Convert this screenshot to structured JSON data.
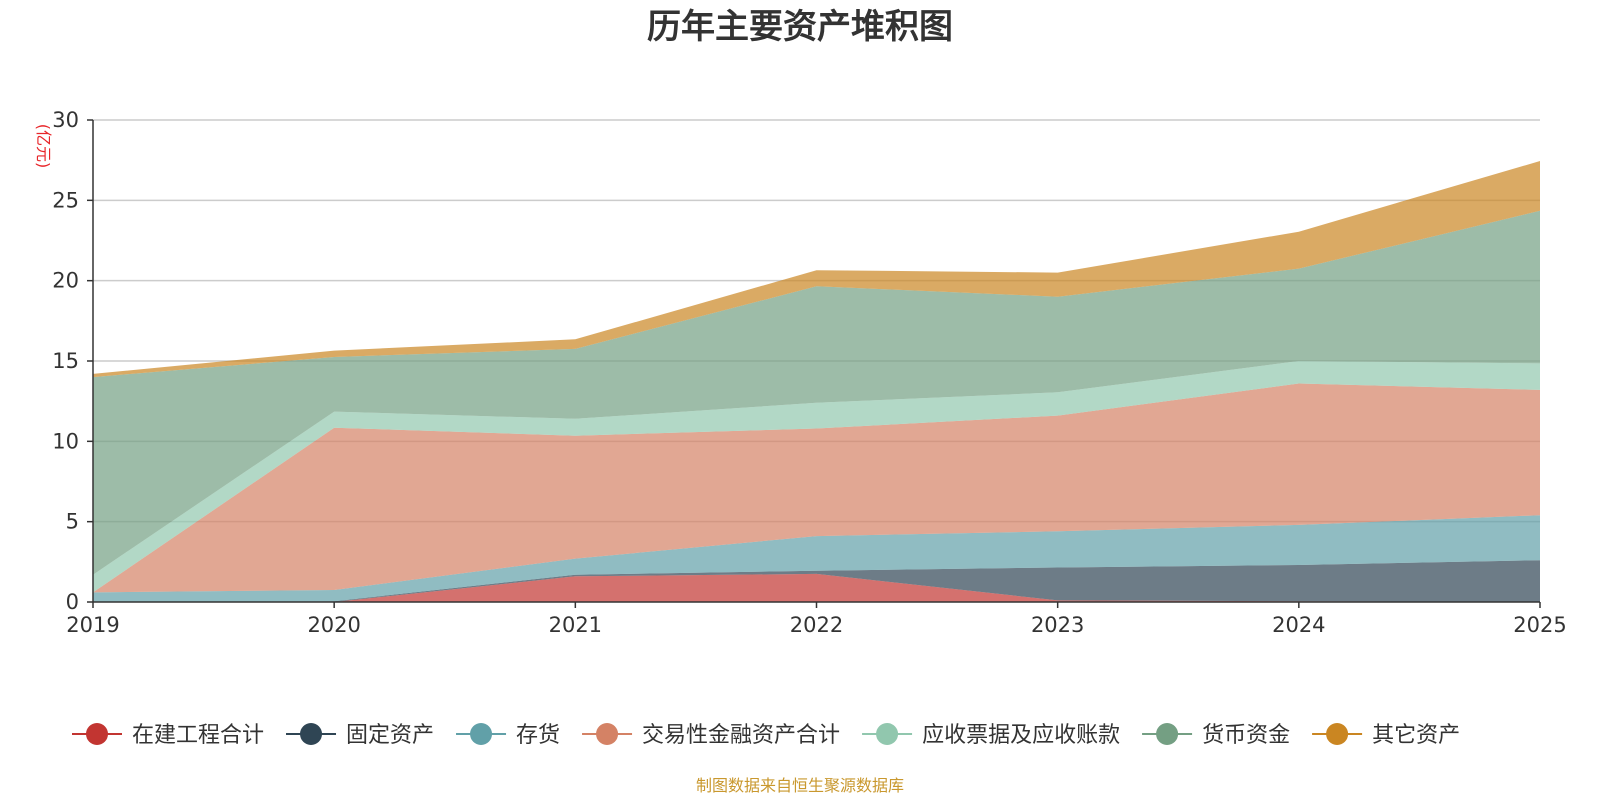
{
  "chart_data": {
    "type": "area",
    "stacked": true,
    "title": "历年主要资产堆积图",
    "unit_label": "(亿元)",
    "categories": [
      "2019",
      "2020",
      "2021",
      "2022",
      "2023",
      "2024",
      "2025"
    ],
    "ylim": [
      0,
      30
    ],
    "yticks": [
      0,
      5,
      10,
      15,
      20,
      25,
      30
    ],
    "grid": true,
    "legend_position": "bottom",
    "series": [
      {
        "name": "在建工程合计",
        "color": "#c23531",
        "values": [
          0.0,
          0.0,
          1.6,
          1.75,
          0.1,
          0.05,
          0.0
        ]
      },
      {
        "name": "固定资产",
        "color": "#2f4554",
        "values": [
          0.0,
          0.05,
          0.1,
          0.2,
          2.05,
          2.25,
          2.6
        ]
      },
      {
        "name": "存货",
        "color": "#61a0a8",
        "values": [
          0.6,
          0.7,
          1.0,
          2.15,
          2.25,
          2.5,
          2.8
        ]
      },
      {
        "name": "交易性金融资产合计",
        "color": "#d48265",
        "values": [
          0.0,
          10.1,
          7.65,
          6.7,
          7.2,
          8.8,
          7.8
        ]
      },
      {
        "name": "应收票据及应收账款",
        "color": "#91c7ae",
        "values": [
          1.1,
          1.0,
          1.05,
          1.6,
          1.45,
          1.4,
          1.65
        ]
      },
      {
        "name": "货币资金",
        "color": "#749f83",
        "values": [
          12.3,
          3.4,
          4.35,
          7.25,
          5.95,
          5.75,
          9.5
        ]
      },
      {
        "name": "其它资产",
        "color": "#ca8622",
        "values": [
          0.2,
          0.4,
          0.6,
          1.0,
          1.5,
          2.3,
          3.1
        ]
      }
    ]
  },
  "source_note": "制图数据来自恒生聚源数据库"
}
